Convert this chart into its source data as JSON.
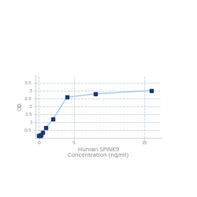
{
  "x": [
    0,
    0.0625,
    0.125,
    0.25,
    0.5,
    1,
    2,
    4,
    8,
    16
  ],
  "y": [
    0.147,
    0.158,
    0.175,
    0.22,
    0.35,
    0.63,
    1.2,
    2.58,
    2.8,
    3.0
  ],
  "line_color": "#a8c8e8",
  "marker_color": "#1a3a6b",
  "marker_size": 3.5,
  "line_width": 1.0,
  "xlabel_line1": "Human SPINK9",
  "xlabel_line2": "Concentration (ng/ml)",
  "ylabel": "OD",
  "xlim": [
    -0.5,
    17.5
  ],
  "ylim": [
    0,
    4.0
  ],
  "yticks": [
    0.5,
    1.0,
    1.5,
    2.0,
    2.5,
    3.0,
    3.5
  ],
  "ytick_labels": [
    "0.5",
    "1",
    "1.5",
    "2",
    "2.5",
    "3",
    "3.5"
  ],
  "xticks": [
    0,
    5,
    15
  ],
  "xtick_labels": [
    "0",
    "5",
    "15"
  ],
  "grid_color": "#c8d4e0",
  "grid_linestyle": "--",
  "grid_alpha": 1.0,
  "bg_color": "#ffffff",
  "font_size_label": 5.0,
  "font_size_tick": 4.5,
  "title": ""
}
